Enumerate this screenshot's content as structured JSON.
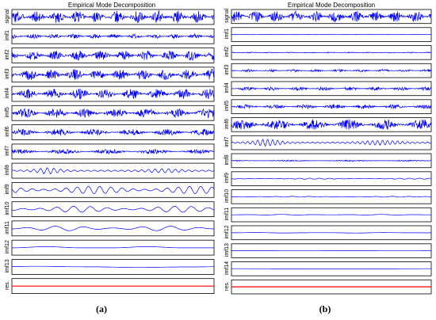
{
  "figure": {
    "panels": [
      {
        "title": "Empirical Mode Decomposition",
        "caption": "(a)",
        "rows": [
          {
            "label": "signal",
            "amp": 0.95,
            "freq": 90,
            "style": "noise",
            "color": "#0000ff"
          },
          {
            "label": "imf1",
            "amp": 0.35,
            "freq": 90,
            "style": "noise",
            "color": "#0000ff"
          },
          {
            "label": "imf2",
            "amp": 0.75,
            "freq": 80,
            "style": "noise",
            "color": "#0000ff"
          },
          {
            "label": "imf3",
            "amp": 0.85,
            "freq": 80,
            "style": "noise",
            "color": "#0000ff"
          },
          {
            "label": "imf4",
            "amp": 0.8,
            "freq": 70,
            "style": "noise",
            "color": "#0000ff"
          },
          {
            "label": "imf5",
            "amp": 0.7,
            "freq": 60,
            "style": "noise",
            "color": "#0000ff"
          },
          {
            "label": "imf6",
            "amp": 0.5,
            "freq": 50,
            "style": "noise",
            "color": "#0000ff"
          },
          {
            "label": "imf7",
            "amp": 0.35,
            "freq": 40,
            "style": "noise",
            "color": "#0000ff"
          },
          {
            "label": "imf8",
            "amp": 0.4,
            "freq": 30,
            "style": "burst",
            "color": "#0000ff"
          },
          {
            "label": "imf9",
            "amp": 0.55,
            "freq": 18,
            "style": "wave",
            "color": "#0000ff"
          },
          {
            "label": "imf10",
            "amp": 0.45,
            "freq": 12,
            "style": "wave",
            "color": "#0000ff"
          },
          {
            "label": "imf11",
            "amp": 0.35,
            "freq": 7,
            "style": "wave",
            "color": "#0000ff"
          },
          {
            "label": "imf12",
            "amp": 0.15,
            "freq": 2,
            "style": "wave",
            "color": "#0000ff"
          },
          {
            "label": "imf13",
            "amp": 0.1,
            "freq": 1,
            "style": "wave",
            "color": "#0000ff"
          },
          {
            "label": "res.",
            "amp": 0.0,
            "freq": 0,
            "style": "flat",
            "color": "#ff0000"
          }
        ]
      },
      {
        "title": "Empirical Mode Decomposition",
        "caption": "(b)",
        "rows": [
          {
            "label": "signal",
            "amp": 0.95,
            "freq": 90,
            "style": "noise",
            "color": "#0000ff"
          },
          {
            "label": "imf1",
            "amp": 0.03,
            "freq": 90,
            "style": "noise",
            "color": "#0000ff"
          },
          {
            "label": "imf2",
            "amp": 0.08,
            "freq": 90,
            "style": "noise",
            "color": "#0000ff"
          },
          {
            "label": "imf3",
            "amp": 0.2,
            "freq": 80,
            "style": "noise",
            "color": "#0000ff"
          },
          {
            "label": "imf4",
            "amp": 0.3,
            "freq": 70,
            "style": "noise",
            "color": "#0000ff"
          },
          {
            "label": "imf5",
            "amp": 0.35,
            "freq": 60,
            "style": "noise",
            "color": "#0000ff"
          },
          {
            "label": "imf6",
            "amp": 0.85,
            "freq": 50,
            "style": "noise",
            "color": "#0000ff"
          },
          {
            "label": "imf7",
            "amp": 0.5,
            "freq": 40,
            "style": "burst",
            "color": "#0000ff"
          },
          {
            "label": "imf8",
            "amp": 0.1,
            "freq": 30,
            "style": "noise",
            "color": "#0000ff"
          },
          {
            "label": "imf9",
            "amp": 0.08,
            "freq": 20,
            "style": "wave",
            "color": "#0000ff"
          },
          {
            "label": "imf10",
            "amp": 0.06,
            "freq": 12,
            "style": "wave",
            "color": "#0000ff"
          },
          {
            "label": "imf11",
            "amp": 0.05,
            "freq": 6,
            "style": "wave",
            "color": "#0000ff"
          },
          {
            "label": "imf12",
            "amp": 0.04,
            "freq": 3,
            "style": "wave",
            "color": "#0000ff"
          },
          {
            "label": "imf13",
            "amp": 0.03,
            "freq": 2,
            "style": "wave",
            "color": "#0000ff"
          },
          {
            "label": "imf14",
            "amp": 0.02,
            "freq": 1,
            "style": "wave",
            "color": "#0000ff"
          },
          {
            "label": "res.",
            "amp": 0.0,
            "freq": 0,
            "style": "flat",
            "color": "#ff0000"
          }
        ]
      }
    ]
  },
  "chart_data": [
    {
      "type": "line",
      "title": "Empirical Mode Decomposition",
      "series": [
        "signal",
        "imf1",
        "imf2",
        "imf3",
        "imf4",
        "imf5",
        "imf6",
        "imf7",
        "imf8",
        "imf9",
        "imf10",
        "imf11",
        "imf12",
        "imf13",
        "res."
      ],
      "grid": false
    },
    {
      "type": "line",
      "title": "Empirical Mode Decomposition",
      "series": [
        "signal",
        "imf1",
        "imf2",
        "imf3",
        "imf4",
        "imf5",
        "imf6",
        "imf7",
        "imf8",
        "imf9",
        "imf10",
        "imf11",
        "imf12",
        "imf13",
        "imf14",
        "res."
      ],
      "grid": false
    }
  ]
}
